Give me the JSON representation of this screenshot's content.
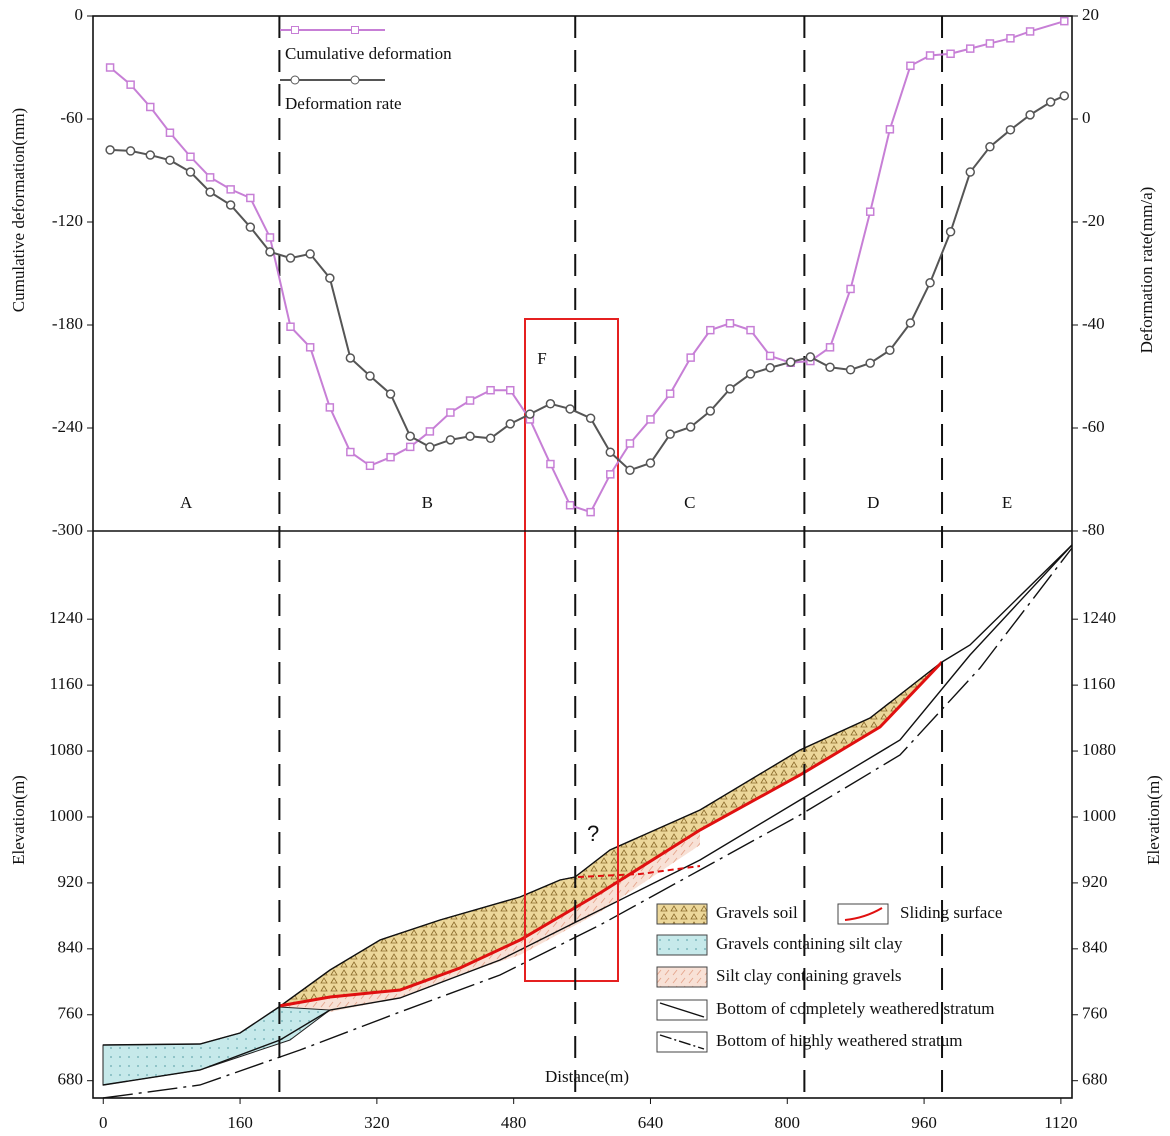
{
  "chart_data": [
    {
      "type": "line",
      "ylabel": "Cumulative deformation(mm)",
      "y2label": "Deformation rate(mm/a)",
      "xlim": [
        -12,
        1133
      ],
      "ylim": [
        -300,
        0
      ],
      "yticks": [
        0,
        -60,
        -120,
        -180,
        -240,
        -300
      ],
      "y2lim": [
        -80,
        20
      ],
      "y2ticks": [
        20,
        0,
        -20,
        -40,
        -60,
        -80
      ],
      "zone_boundaries": [
        206,
        552,
        820,
        981
      ],
      "zones": [
        "A",
        "B",
        "C",
        "D",
        "E"
      ],
      "annotation": "F",
      "series": [
        {
          "name": "Cumulative deformation",
          "color": "#c77fd6",
          "marker": "square",
          "x": [
            8,
            32,
            55,
            78,
            102,
            125,
            149,
            172,
            195,
            219,
            242,
            265,
            289,
            312,
            336,
            359,
            382,
            406,
            429,
            453,
            476,
            499,
            523,
            546,
            570,
            593,
            616,
            640,
            663,
            687,
            710,
            733,
            757,
            780,
            804,
            827,
            850,
            874,
            897,
            920,
            944,
            967,
            991,
            1014,
            1037,
            1061,
            1084,
            1124
          ],
          "values": [
            -30,
            -40,
            -53,
            -68,
            -82,
            -94,
            -101,
            -106,
            -129,
            -181,
            -193,
            -228,
            -254,
            -262,
            -257,
            -251,
            -242,
            -231,
            -224,
            -218,
            -218,
            -235,
            -261,
            -285,
            -289,
            -267,
            -249,
            -235,
            -220,
            -199,
            -183,
            -179,
            -183,
            -198,
            -202,
            -201,
            -193,
            -159,
            -114,
            -66,
            -29,
            -23,
            -22,
            -19,
            -16,
            -13,
            -9,
            -3
          ]
        },
        {
          "name": "Deformation rate",
          "color": "#555555",
          "marker": "circle",
          "axis": "y2",
          "x": [
            8,
            32,
            55,
            78,
            102,
            125,
            149,
            172,
            195,
            219,
            242,
            265,
            289,
            312,
            336,
            359,
            382,
            406,
            429,
            453,
            476,
            499,
            523,
            546,
            570,
            593,
            616,
            640,
            663,
            687,
            710,
            733,
            757,
            780,
            804,
            827,
            850,
            874,
            897,
            920,
            944,
            967,
            991,
            1014,
            1037,
            1061,
            1084,
            1108,
            1124
          ],
          "values": [
            -6,
            -6.2,
            -7,
            -8,
            -10.3,
            -14.2,
            -16.7,
            -21,
            -25.8,
            -27,
            -26.2,
            -30.9,
            -46.4,
            -49.9,
            -53.4,
            -61.6,
            -63.7,
            -62.3,
            -61.6,
            -62,
            -59.2,
            -57.3,
            -55.3,
            -56.3,
            -58.1,
            -64.7,
            -68.2,
            -66.8,
            -61.2,
            -59.8,
            -56.7,
            -52.4,
            -49.5,
            -48.3,
            -47.2,
            -46.2,
            -48.2,
            -48.7,
            -47.4,
            -44.9,
            -39.6,
            -31.8,
            -21.9,
            -10.3,
            -5.4,
            -2.1,
            0.8,
            3.3,
            4.5
          ]
        }
      ]
    },
    {
      "type": "section",
      "xlabel": "Distance(m)",
      "ylabel": "Elevation(m)",
      "xlim": [
        -12,
        1133
      ],
      "xticks": [
        0,
        160,
        320,
        480,
        640,
        800,
        960,
        1120
      ],
      "ylim": [
        659,
        1347
      ],
      "yticks": [
        680,
        760,
        840,
        920,
        1000,
        1080,
        1160,
        1240
      ],
      "annotation": "?",
      "legend": [
        "Gravels soil",
        "Sliding surface",
        "Gravels containing silt clay",
        "Silt clay containing gravels",
        "Bottom of completely weathered stratum",
        "Bottom of highly weathered stratum"
      ]
    }
  ]
}
